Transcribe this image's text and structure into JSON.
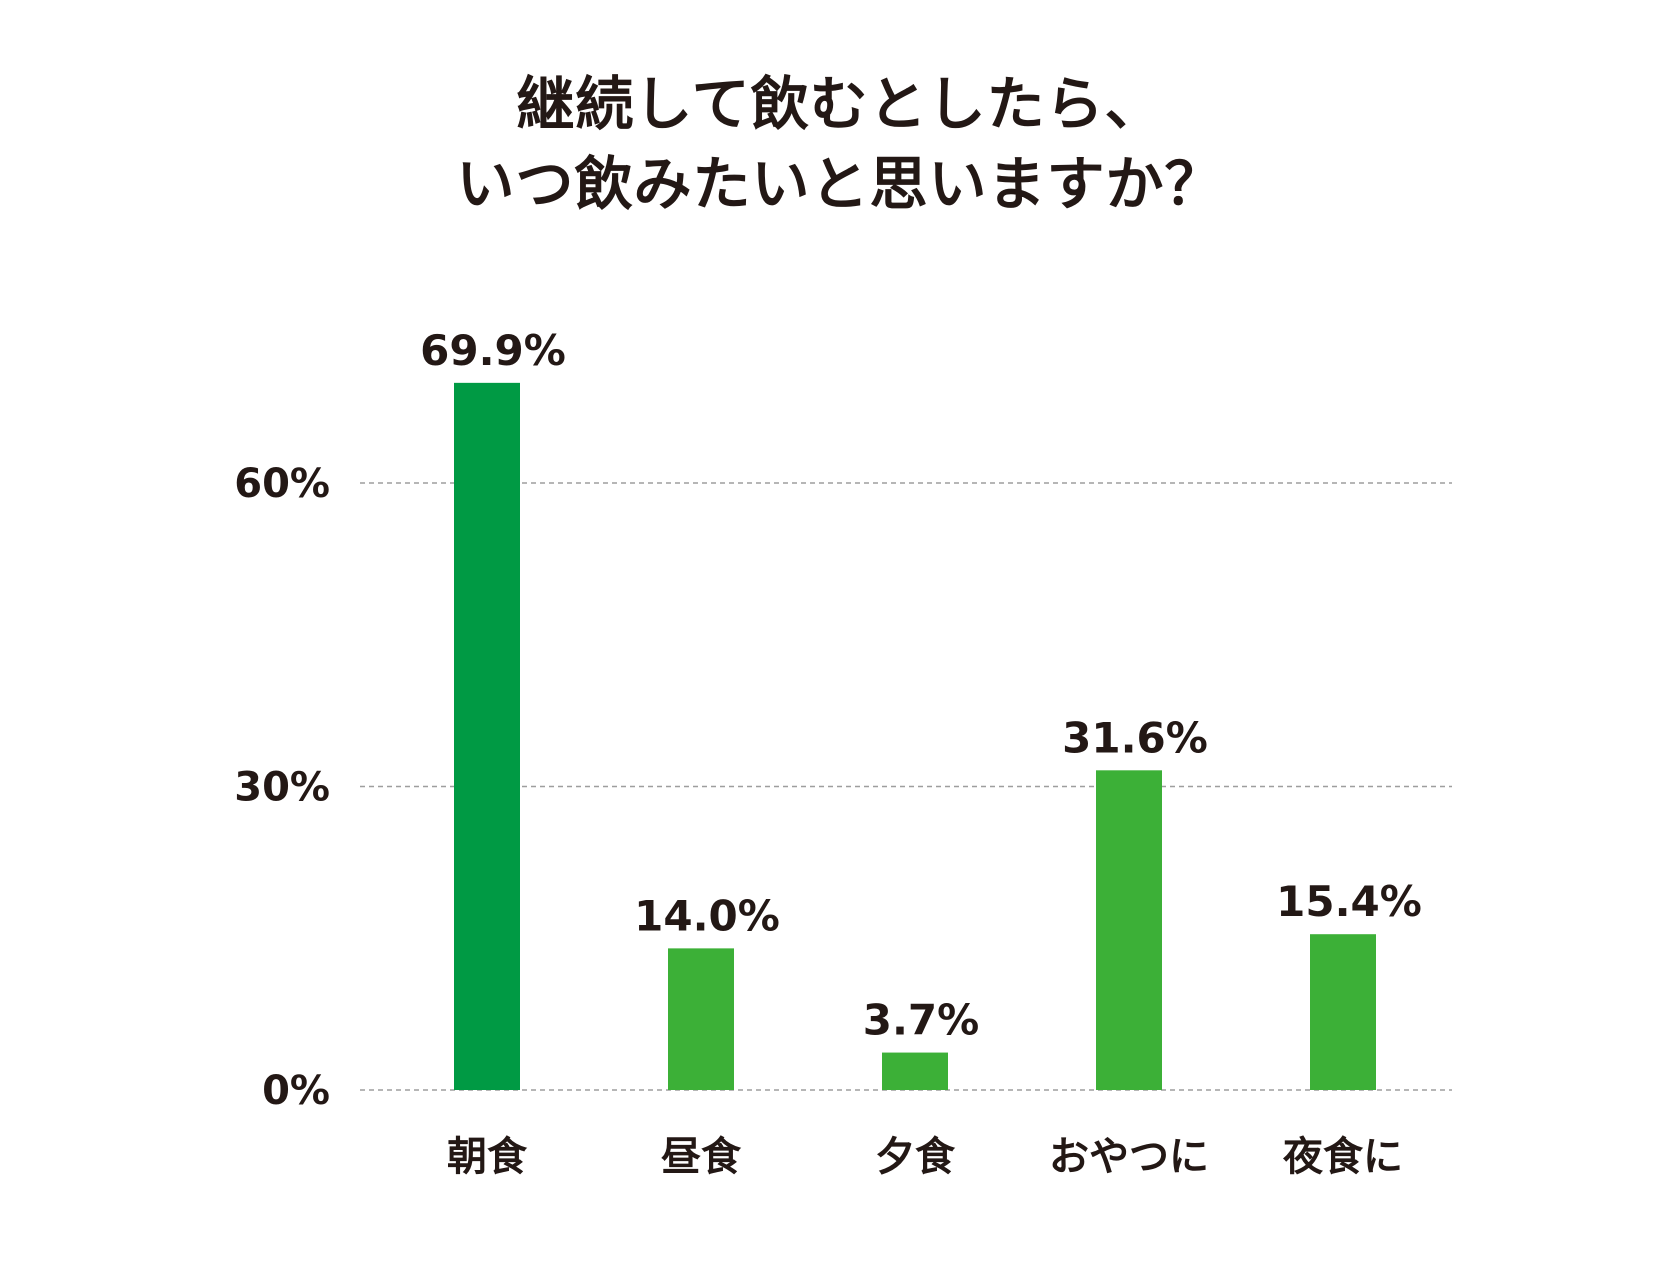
{
  "title_lines": [
    "継続して飲むとしたら、",
    "いつ飲みたいと思いますか？"
  ],
  "chart_data": {
    "type": "bar",
    "title": "継続して飲むとしたら、いつ飲みたいと思いますか？",
    "categories": [
      "朝食",
      "昼食",
      "夕食",
      "おやつに",
      "夜食に"
    ],
    "values": [
      69.9,
      14.0,
      3.7,
      31.6,
      15.4
    ],
    "value_labels": [
      "69.9%",
      "14.0%",
      "3.7%",
      "31.6%",
      "15.4%"
    ],
    "ylim": [
      0,
      60
    ],
    "yticks": [
      0,
      30,
      60
    ],
    "ytick_labels": [
      "0%",
      "30%",
      "60%"
    ],
    "xlabel": "",
    "ylabel": "",
    "grid": "horizontal-dashed",
    "legend": "none",
    "colors": {
      "highlight_bar": "#009a44",
      "bar": "#3cb037",
      "gridline": "#9e9e9e",
      "text": "#231815"
    },
    "highlight_index": 0
  }
}
